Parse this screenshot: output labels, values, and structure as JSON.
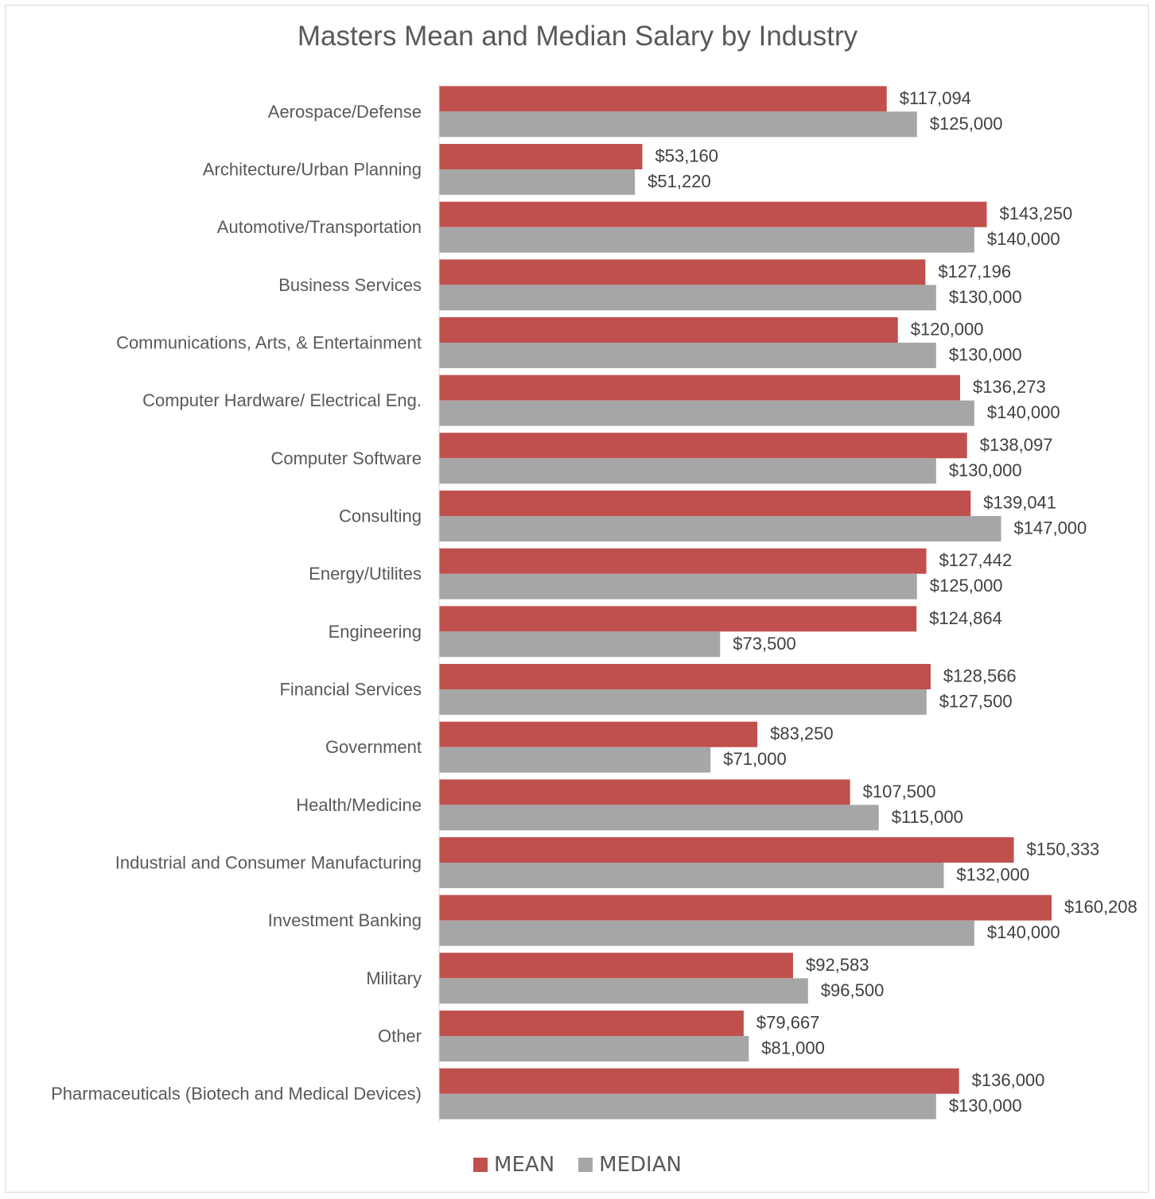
{
  "chart_data": {
    "type": "bar",
    "orientation": "horizontal",
    "title": "Masters Mean and Median Salary by Industry",
    "categories": [
      "Aerospace/Defense",
      "Architecture/Urban Planning",
      "Automotive/Transportation",
      "Business Services",
      "Communications, Arts, & Entertainment",
      "Computer Hardware/ Electrical Eng.",
      "Computer Software",
      "Consulting",
      "Energy/Utilites",
      "Engineering",
      "Financial Services",
      "Government",
      "Health/Medicine",
      "Industrial and Consumer Manufacturing",
      "Investment Banking",
      "Military",
      "Other",
      "Pharmaceuticals (Biotech and Medical Devices)"
    ],
    "series": [
      {
        "name": "MEAN",
        "color": "#c0504d",
        "values": [
          117094,
          53160,
          143250,
          127196,
          120000,
          136273,
          138097,
          139041,
          127442,
          124864,
          128566,
          83250,
          107500,
          150333,
          160208,
          92583,
          79667,
          136000
        ],
        "labels": [
          "$117,094",
          "$53,160",
          "$143,250",
          "$127,196",
          "$120,000",
          "$136,273",
          "$138,097",
          "$139,041",
          "$127,442",
          "$124,864",
          "$128,566",
          "$83,250",
          "$107,500",
          "$150,333",
          "$160,208",
          "$92,583",
          "$79,667",
          "$136,000"
        ]
      },
      {
        "name": "MEDIAN",
        "color": "#a6a6a6",
        "values": [
          125000,
          51220,
          140000,
          130000,
          130000,
          140000,
          130000,
          147000,
          125000,
          73500,
          127500,
          71000,
          115000,
          132000,
          140000,
          96500,
          81000,
          130000
        ],
        "labels": [
          "$125,000",
          "$51,220",
          "$140,000",
          "$130,000",
          "$130,000",
          "$140,000",
          "$130,000",
          "$147,000",
          "$125,000",
          "$73,500",
          "$127,500",
          "$71,000",
          "$115,000",
          "$132,000",
          "$140,000",
          "$96,500",
          "$81,000",
          "$130,000"
        ]
      }
    ],
    "xlim": [
      0,
      160208
    ],
    "grid": false,
    "legend": "bottom"
  }
}
